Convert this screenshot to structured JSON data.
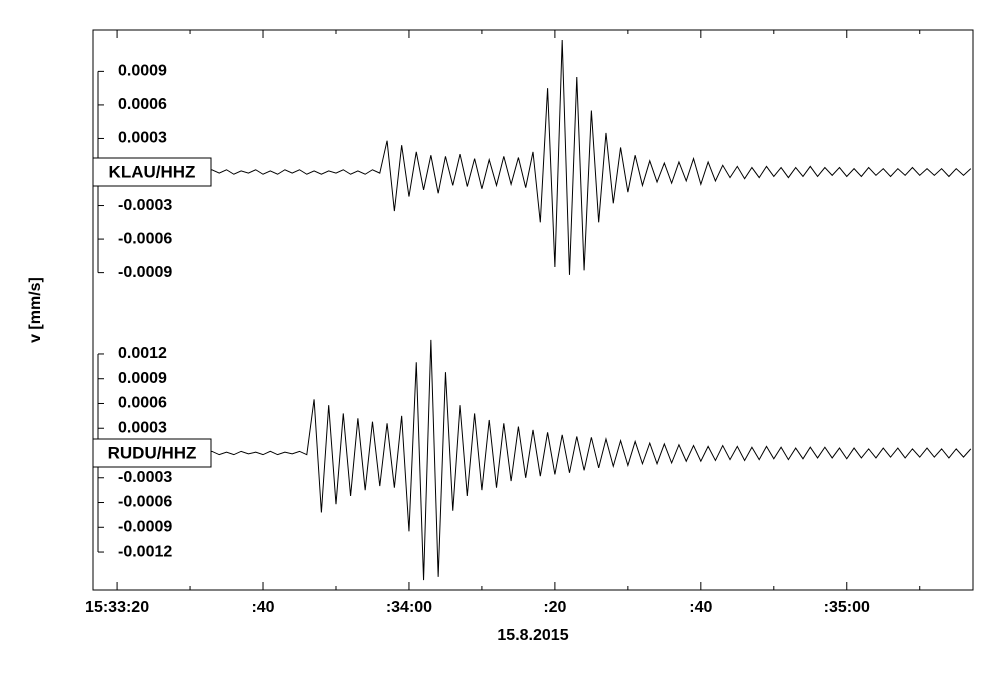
{
  "chart_data": {
    "type": "line",
    "x_label": "15.8.2015",
    "y_label": "v [mm/s]",
    "xlim": [
      55996.7,
      56117.3
    ],
    "xticks": [
      {
        "value": 56000,
        "label": "15:33:20"
      },
      {
        "value": 56020,
        "label": ":40"
      },
      {
        "value": 56040,
        "label": ":34:00"
      },
      {
        "value": 56060,
        "label": ":20"
      },
      {
        "value": 56080,
        "label": ":40"
      },
      {
        "value": 56100,
        "label": ":35:00"
      }
    ],
    "x": [
      55997,
      55998,
      55999,
      56000,
      56001,
      56002,
      56003,
      56004,
      56005,
      56006,
      56007,
      56008,
      56009,
      56010,
      56011,
      56012,
      56013,
      56014,
      56015,
      56016,
      56017,
      56018,
      56019,
      56020,
      56021,
      56022,
      56023,
      56024,
      56025,
      56026,
      56027,
      56028,
      56029,
      56030,
      56031,
      56032,
      56033,
      56034,
      56035,
      56036,
      56037,
      56038,
      56039,
      56040,
      56041,
      56042,
      56043,
      56044,
      56045,
      56046,
      56047,
      56048,
      56049,
      56050,
      56051,
      56052,
      56053,
      56054,
      56055,
      56056,
      56057,
      56058,
      56059,
      56060,
      56061,
      56062,
      56063,
      56064,
      56065,
      56066,
      56067,
      56068,
      56069,
      56070,
      56071,
      56072,
      56073,
      56074,
      56075,
      56076,
      56077,
      56078,
      56079,
      56080,
      56081,
      56082,
      56083,
      56084,
      56085,
      56086,
      56087,
      56088,
      56089,
      56090,
      56091,
      56092,
      56093,
      56094,
      56095,
      56096,
      56097,
      56098,
      56099,
      56100,
      56101,
      56102,
      56103,
      56104,
      56105,
      56106,
      56107,
      56108,
      56109,
      56110,
      56111,
      56112,
      56113,
      56114,
      56115,
      56116,
      56117
    ],
    "series": [
      {
        "name": "KLAU/HHZ",
        "color": "#000000",
        "ylim": [
          -0.00127,
          0.00127
        ],
        "yticks": [
          0.0009,
          0.0006,
          0.0003,
          -0.0003,
          -0.0006,
          -0.0009
        ],
        "values": [
          1e-05,
          -2e-05,
          2e-05,
          -1e-05,
          2e-05,
          -2e-05,
          1e-05,
          -1e-05,
          2e-05,
          -2e-05,
          1e-05,
          -2e-05,
          2e-05,
          -1e-05,
          1e-05,
          -2e-05,
          2e-05,
          -1e-05,
          2e-05,
          -2e-05,
          1e-05,
          -1e-05,
          2e-05,
          -2e-05,
          1e-05,
          -2e-05,
          2e-05,
          -1e-05,
          2e-05,
          -2e-05,
          1e-05,
          -2e-05,
          1e-05,
          -1e-05,
          2e-05,
          -2e-05,
          1e-05,
          -2e-05,
          2e-05,
          -1e-05,
          0.00028,
          -0.00035,
          0.00024,
          -0.00022,
          0.00018,
          -0.00016,
          0.00015,
          -0.00019,
          0.00014,
          -0.00012,
          0.00016,
          -0.00013,
          0.00012,
          -0.00015,
          0.00011,
          -0.00012,
          0.00014,
          -0.00011,
          0.00013,
          -0.00014,
          0.00018,
          -0.00045,
          0.00075,
          -0.00085,
          0.00118,
          -0.00092,
          0.00085,
          -0.00088,
          0.00055,
          -0.00045,
          0.00035,
          -0.00028,
          0.00022,
          -0.00018,
          0.00015,
          -0.00012,
          0.0001,
          -9e-05,
          8e-05,
          -0.0001,
          9e-05,
          -8e-05,
          0.00012,
          -0.00011,
          9e-05,
          -8e-05,
          6e-05,
          -5e-05,
          5e-05,
          -6e-05,
          4e-05,
          -5e-05,
          5e-05,
          -4e-05,
          4e-05,
          -5e-05,
          4e-05,
          -4e-05,
          5e-05,
          -4e-05,
          4e-05,
          -3e-05,
          4e-05,
          -4e-05,
          3e-05,
          -4e-05,
          4e-05,
          -3e-05,
          3e-05,
          -4e-05,
          3e-05,
          -3e-05,
          4e-05,
          -3e-05,
          3e-05,
          -3e-05,
          3e-05,
          -4e-05,
          3e-05,
          -3e-05,
          3e-05
        ]
      },
      {
        "name": "RUDU/HHZ",
        "color": "#000000",
        "ylim": [
          -0.00166,
          0.00166
        ],
        "yticks": [
          0.0012,
          0.0009,
          0.0006,
          0.0003,
          -0.0003,
          -0.0006,
          -0.0009,
          -0.0012
        ],
        "values": [
          2e-05,
          -2e-05,
          1e-05,
          -2e-05,
          2e-05,
          -1e-05,
          2e-05,
          -2e-05,
          1e-05,
          -1e-05,
          2e-05,
          -2e-05,
          1e-05,
          -2e-05,
          2e-05,
          -1e-05,
          2e-05,
          -2e-05,
          1e-05,
          -2e-05,
          2e-05,
          -1e-05,
          1e-05,
          -2e-05,
          2e-05,
          -2e-05,
          1e-05,
          -1e-05,
          2e-05,
          -2e-05,
          0.00065,
          -0.00072,
          0.00058,
          -0.00062,
          0.00048,
          -0.00052,
          0.00042,
          -0.00045,
          0.00038,
          -0.0004,
          0.00036,
          -0.00042,
          0.00045,
          -0.00095,
          0.0011,
          -0.00154,
          0.00137,
          -0.0015,
          0.00098,
          -0.0007,
          0.00058,
          -0.00052,
          0.00048,
          -0.00045,
          0.0004,
          -0.00042,
          0.00036,
          -0.00034,
          0.00032,
          -0.0003,
          0.00028,
          -0.00028,
          0.00025,
          -0.00026,
          0.00022,
          -0.00024,
          0.0002,
          -0.00021,
          0.00019,
          -0.00018,
          0.00017,
          -0.00016,
          0.00015,
          -0.00015,
          0.00014,
          -0.00013,
          0.00012,
          -0.00013,
          0.00011,
          -0.00012,
          0.0001,
          -0.0001,
          9e-05,
          -0.0001,
          8e-05,
          -9e-05,
          9e-05,
          -8e-05,
          8e-05,
          -9e-05,
          7e-05,
          -8e-05,
          8e-05,
          -7e-05,
          7e-05,
          -8e-05,
          6e-05,
          -7e-05,
          7e-05,
          -6e-05,
          7e-05,
          -6e-05,
          6e-05,
          -7e-05,
          6e-05,
          -6e-05,
          5e-05,
          -6e-05,
          6e-05,
          -5e-05,
          6e-05,
          -6e-05,
          5e-05,
          -5e-05,
          6e-05,
          -5e-05,
          5e-05,
          -6e-05,
          5e-05,
          -5e-05,
          5e-05
        ]
      }
    ]
  }
}
